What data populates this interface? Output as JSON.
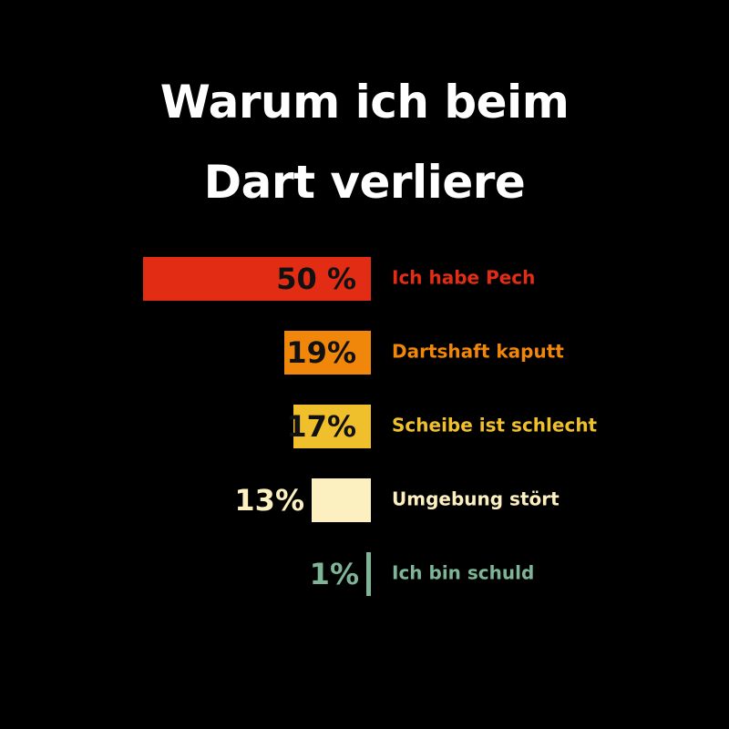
{
  "chart_data": {
    "type": "bar",
    "title": "Warum ich beim Dart verliere",
    "categories": [
      "Ich habe Pech",
      "Dartshaft kaputt",
      "Scheibe ist schlecht",
      "Umgebung stört",
      "Ich bin schuld"
    ],
    "values": [
      50,
      19,
      17,
      13,
      1
    ],
    "value_labels": [
      "50 %",
      "19%",
      "17%",
      "13%",
      "1%"
    ],
    "colors": [
      "#e22d14",
      "#f0860a",
      "#f0c02c",
      "#fcefc0",
      "#7db596"
    ]
  }
}
